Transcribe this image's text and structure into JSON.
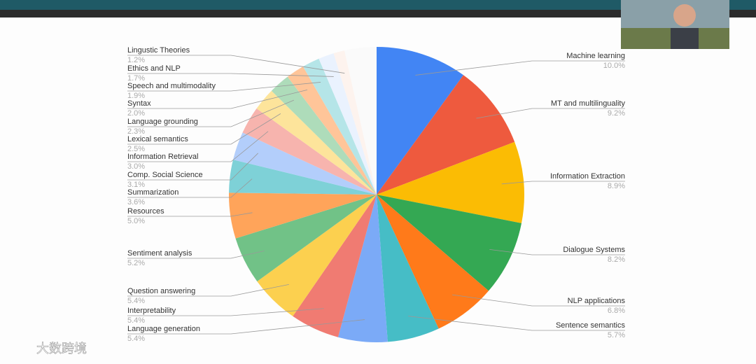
{
  "chart_data": {
    "type": "pie",
    "categories": [
      "Machine learning",
      "MT and multilinguality",
      "Information Extraction",
      "Dialogue Systems",
      "NLP applications",
      "Sentence semantics",
      "Language generation",
      "Interpretability",
      "Question answering",
      "Sentiment analysis",
      "Resources",
      "Summarization",
      "Comp. Social Science",
      "Information Retrieval",
      "Lexical semantics",
      "Language grounding",
      "Syntax",
      "Speech and multimodality",
      "Ethics and NLP",
      "Lingustic Theories"
    ],
    "values": [
      10.0,
      9.2,
      8.9,
      8.2,
      6.8,
      5.7,
      5.4,
      5.4,
      5.4,
      5.2,
      5.0,
      3.6,
      3.1,
      3.0,
      2.5,
      2.3,
      2.0,
      1.9,
      1.7,
      1.2
    ],
    "value_labels": [
      "10.0%",
      "9.2%",
      "8.9%",
      "8.2%",
      "6.8%",
      "5.7%",
      "5.4%",
      "5.4%",
      "5.4%",
      "5.2%",
      "5.0%",
      "3.6%",
      "3.1%",
      "3.0%",
      "2.5%",
      "2.3%",
      "2.0%",
      "1.9%",
      "1.7%",
      "1.2%"
    ],
    "colors": [
      "#4285f4",
      "#ee5a3e",
      "#fbbc04",
      "#34a853",
      "#ff7a1a",
      "#46bdc6",
      "#7baaf7",
      "#f07b72",
      "#fcd04f",
      "#71c287",
      "#ffa45a",
      "#7ed1d7",
      "#b3cefb",
      "#f7b4ae",
      "#fde49b",
      "#aedcba",
      "#ffc599",
      "#b5e5e8",
      "#eaf2fe",
      "#fdf3ee"
    ]
  },
  "watermark": "大数跨境"
}
